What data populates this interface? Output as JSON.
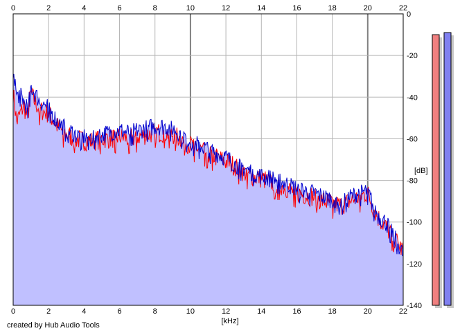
{
  "credit": "created by Hub Audio Tools",
  "chart_data": {
    "type": "area",
    "title": "",
    "xlabel": "[kHz]",
    "ylabel": "[dB]",
    "xlim": [
      0,
      22
    ],
    "ylim": [
      -140,
      0
    ],
    "x_ticks": [
      "0",
      "2",
      "4",
      "6",
      "8",
      "10",
      "12",
      "14",
      "16",
      "18",
      "20",
      "22"
    ],
    "y_ticks": [
      "0",
      "-20",
      "-40",
      "-60",
      "-80",
      "-100",
      "-120",
      "-140"
    ],
    "grid": true,
    "legend": "none",
    "colors": {
      "fill": "#c0c0ff",
      "series_red": "#ff0000",
      "series_blue": "#0000cc",
      "grid": "#b4b4b4",
      "grid_major": "#808080",
      "meter_left": "#f08080",
      "meter_right": "#8080f0"
    },
    "series": [
      {
        "color": "#ff0000",
        "x": [
          0,
          0.2,
          0.4,
          0.6,
          0.8,
          1.0,
          1.2,
          1.5,
          2.0,
          2.5,
          3.0,
          3.5,
          4.0,
          4.5,
          5.0,
          5.5,
          6.0,
          6.5,
          7.0,
          7.5,
          8.0,
          8.5,
          9.0,
          9.5,
          10.0,
          10.5,
          11.0,
          11.5,
          12.0,
          12.5,
          13.0,
          13.5,
          14.0,
          14.5,
          15.0,
          15.5,
          16.0,
          16.5,
          17.0,
          17.5,
          18.0,
          18.5,
          19.0,
          19.5,
          20.0,
          20.3,
          20.6,
          21.0,
          21.5,
          22.0
        ],
        "y": [
          -38,
          -52,
          -48,
          -44,
          -50,
          -38,
          -42,
          -46,
          -48,
          -54,
          -58,
          -60,
          -61,
          -61,
          -60,
          -60,
          -59,
          -60,
          -59,
          -58,
          -57,
          -57,
          -58,
          -60,
          -63,
          -65,
          -67,
          -69,
          -71,
          -73,
          -76,
          -78,
          -79,
          -81,
          -82,
          -84,
          -86,
          -87,
          -88,
          -90,
          -91,
          -92,
          -90,
          -88,
          -86,
          -93,
          -98,
          -102,
          -108,
          -114
        ]
      },
      {
        "color": "#0000cc",
        "x": [
          0,
          0.2,
          0.4,
          0.6,
          0.8,
          1.0,
          1.2,
          1.5,
          2.0,
          2.5,
          3.0,
          3.5,
          4.0,
          4.5,
          5.0,
          5.5,
          6.0,
          6.5,
          7.0,
          7.5,
          8.0,
          8.5,
          9.0,
          9.5,
          10.0,
          10.5,
          11.0,
          11.5,
          12.0,
          12.5,
          13.0,
          13.5,
          14.0,
          14.5,
          15.0,
          15.5,
          16.0,
          16.5,
          17.0,
          17.5,
          18.0,
          18.5,
          19.0,
          19.5,
          20.0,
          20.3,
          20.6,
          21.0,
          21.5,
          22.0
        ],
        "y": [
          -24,
          -40,
          -38,
          -42,
          -45,
          -35,
          -38,
          -42,
          -45,
          -52,
          -55,
          -58,
          -59,
          -59,
          -58,
          -57,
          -56,
          -57,
          -56,
          -55,
          -54,
          -54,
          -55,
          -58,
          -61,
          -63,
          -65,
          -67,
          -69,
          -72,
          -74,
          -76,
          -78,
          -79,
          -80,
          -82,
          -84,
          -85,
          -86,
          -88,
          -89,
          -90,
          -88,
          -86,
          -85,
          -92,
          -97,
          -100,
          -106,
          -116
        ]
      }
    ],
    "meters": {
      "left_level_db": -10,
      "right_level_db": -9,
      "range_db": [
        -140,
        0
      ]
    }
  }
}
